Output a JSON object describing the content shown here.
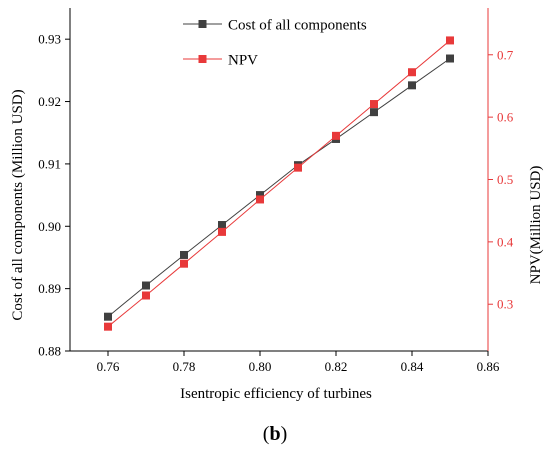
{
  "caption": {
    "open": "(",
    "letter": "b",
    "close": ")"
  },
  "colors": {
    "left_series": "#404040",
    "right_series": "#e8393a",
    "axis": "#000000",
    "right_axis": "#e8393a"
  },
  "chart_data": {
    "type": "line",
    "xlabel": "Isentropic efficiency of turbines",
    "ylabel_left": "Cost of all components (Million USD)",
    "ylabel_right": "NPV(Million USD)",
    "xlim": [
      0.75,
      0.86
    ],
    "ylim_left": [
      0.88,
      0.935
    ],
    "ylim_right": [
      0.225,
      0.775
    ],
    "x_ticks": [
      "0.76",
      "0.78",
      "0.80",
      "0.82",
      "0.84",
      "0.86"
    ],
    "x_tick_values": [
      0.76,
      0.78,
      0.8,
      0.82,
      0.84,
      0.86
    ],
    "y_left_ticks": [
      "0.88",
      "0.89",
      "0.90",
      "0.91",
      "0.92",
      "0.93"
    ],
    "y_left_tick_values": [
      0.88,
      0.89,
      0.9,
      0.91,
      0.92,
      0.93
    ],
    "y_right_ticks": [
      "0.3",
      "0.4",
      "0.5",
      "0.6",
      "0.7"
    ],
    "y_right_tick_values": [
      0.3,
      0.4,
      0.5,
      0.6,
      0.7
    ],
    "legend_position": "top-center",
    "grid": false,
    "series": [
      {
        "name": "Cost of all components",
        "axis": "left",
        "marker": "square",
        "x": [
          0.76,
          0.77,
          0.78,
          0.79,
          0.8,
          0.81,
          0.82,
          0.83,
          0.84,
          0.85
        ],
        "values": [
          0.8855,
          0.8905,
          0.8954,
          0.9002,
          0.905,
          0.9098,
          0.914,
          0.9183,
          0.9226,
          0.9269
        ]
      },
      {
        "name": "NPV",
        "axis": "right",
        "marker": "square",
        "x": [
          0.76,
          0.77,
          0.78,
          0.79,
          0.8,
          0.81,
          0.82,
          0.83,
          0.84,
          0.85
        ],
        "values": [
          0.264,
          0.314,
          0.365,
          0.416,
          0.468,
          0.519,
          0.57,
          0.621,
          0.672,
          0.723
        ]
      }
    ]
  }
}
